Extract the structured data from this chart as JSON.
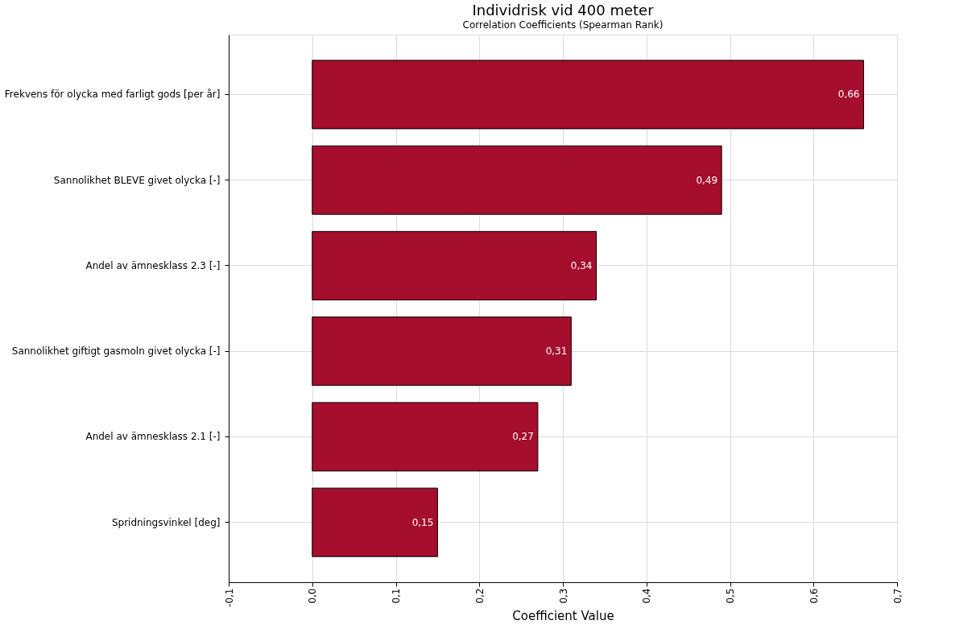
{
  "chart_data": {
    "type": "bar",
    "orientation": "horizontal",
    "title": "Individrisk vid 400 meter",
    "subtitle": "Correlation Coefficients (Spearman Rank)",
    "xlabel": "Coefficient Value",
    "categories": [
      "Frekvens för olycka med farligt gods [per år]",
      "Sannolikhet BLEVE givet olycka [-]",
      "Andel av ämnesklass 2.3 [-]",
      "Sannolikhet giftigt gasmoln givet olycka [-]",
      "Andel av ämnesklass 2.1 [-]",
      "Spridningsvinkel [deg]"
    ],
    "values": [
      0.66,
      0.49,
      0.34,
      0.31,
      0.27,
      0.15
    ],
    "value_labels": [
      "0,66",
      "0,49",
      "0,34",
      "0,31",
      "0,27",
      "0,15"
    ],
    "color": "#a50e2d",
    "xlim": [
      -0.1,
      0.7
    ],
    "xticks": [
      {
        "value": -0.1,
        "label": "-0,1"
      },
      {
        "value": 0.0,
        "label": "0,0"
      },
      {
        "value": 0.1,
        "label": "0,1"
      },
      {
        "value": 0.2,
        "label": "0,2"
      },
      {
        "value": 0.3,
        "label": "0,3"
      },
      {
        "value": 0.4,
        "label": "0,4"
      },
      {
        "value": 0.5,
        "label": "0,5"
      },
      {
        "value": 0.6,
        "label": "0,6"
      },
      {
        "value": 0.7,
        "label": "0,7"
      }
    ],
    "grid": true
  }
}
